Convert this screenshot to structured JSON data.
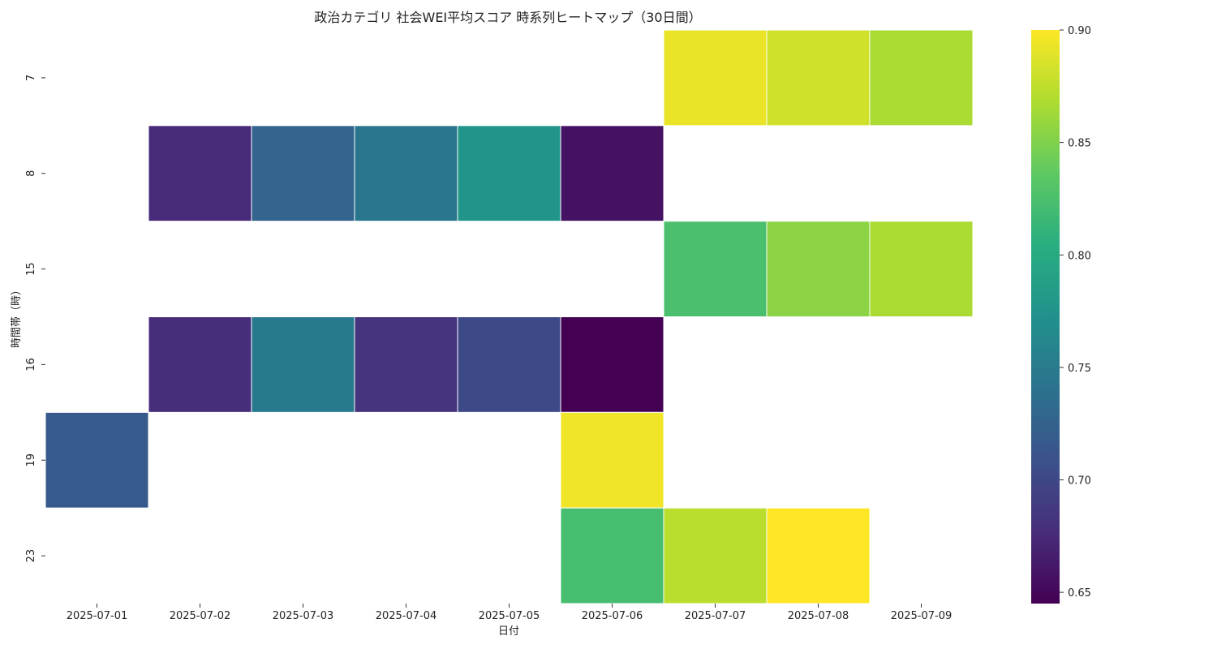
{
  "chart_data": {
    "type": "heatmap",
    "title": "政治カテゴリ 社会WEI平均スコア 時系列ヒートマップ（30日間）",
    "xlabel": "日付",
    "ylabel": "時間帯（時）",
    "x_categories": [
      "2025-07-01",
      "2025-07-02",
      "2025-07-03",
      "2025-07-04",
      "2025-07-05",
      "2025-07-06",
      "2025-07-07",
      "2025-07-08",
      "2025-07-09"
    ],
    "y_categories": [
      "7",
      "8",
      "15",
      "16",
      "19",
      "23"
    ],
    "values": [
      [
        null,
        null,
        null,
        null,
        null,
        null,
        0.892,
        0.882,
        0.867
      ],
      [
        null,
        0.675,
        0.727,
        0.745,
        0.777,
        0.657,
        null,
        null,
        null
      ],
      [
        null,
        null,
        null,
        null,
        null,
        null,
        0.825,
        0.855,
        0.867
      ],
      [
        null,
        0.678,
        0.748,
        0.682,
        0.702,
        0.645,
        null,
        null,
        null
      ],
      [
        0.717,
        null,
        null,
        null,
        null,
        0.895,
        null,
        null,
        null
      ],
      [
        null,
        null,
        null,
        null,
        null,
        0.822,
        0.873,
        0.9,
        null
      ]
    ],
    "colorbar": {
      "colormap": "viridis",
      "min": 0.645,
      "max": 0.9,
      "ticks": [
        "0.65",
        "0.70",
        "0.75",
        "0.80",
        "0.85",
        "0.90"
      ]
    },
    "grid": false,
    "legend": "colorbar-right"
  }
}
